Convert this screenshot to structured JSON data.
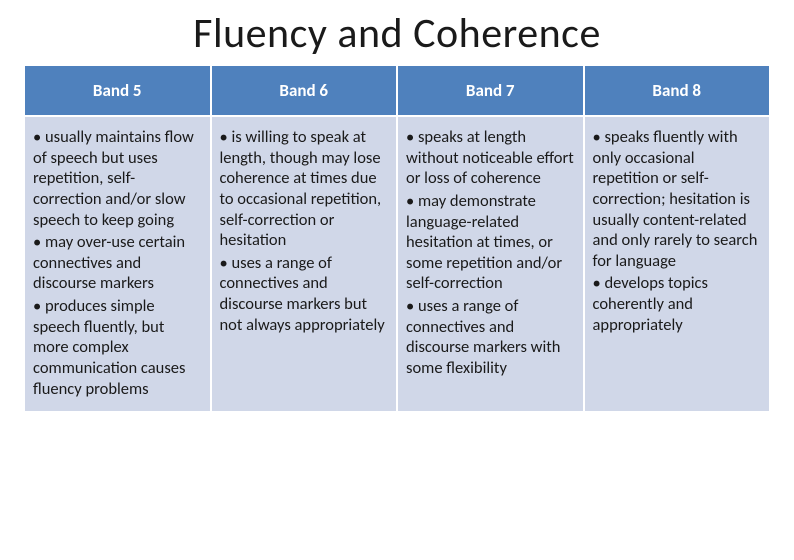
{
  "title": "Fluency and Coherence",
  "table": {
    "type": "table",
    "header_bg": "#4f81bd",
    "header_color": "#ffffff",
    "cell_bg": "#d0d7e8",
    "cell_color": "#1a1a1a",
    "border_color": "#ffffff",
    "title_fontsize": 42,
    "header_fontsize": 17,
    "cell_fontsize": 16.5,
    "columns": [
      {
        "header": "Band 5",
        "bullets": [
          "usually maintains flow of speech but uses repetition, self-correction and/or slow speech to keep going",
          "may over-use certain connectives and discourse markers",
          "produces simple speech fluently, but more complex communication causes fluency problems"
        ]
      },
      {
        "header": "Band 6",
        "bullets": [
          "is willing to speak at length, though may lose coherence at times due to occasional repetition, self-correction or hesitation",
          "uses a range of connectives and discourse markers but not always appropriately"
        ]
      },
      {
        "header": "Band 7",
        "bullets": [
          "speaks at length without noticeable effort or loss of coherence",
          "may demonstrate language-related hesitation at times, or some repetition and/or self-correction",
          " uses a range of connectives and discourse markers with some flexibility"
        ]
      },
      {
        "header": "Band 8",
        "bullets": [
          "speaks fluently with only occasional repetition or self-correction; hesitation is usually content-related and only rarely to search for language",
          "develops topics coherently and appropriately"
        ]
      }
    ]
  }
}
